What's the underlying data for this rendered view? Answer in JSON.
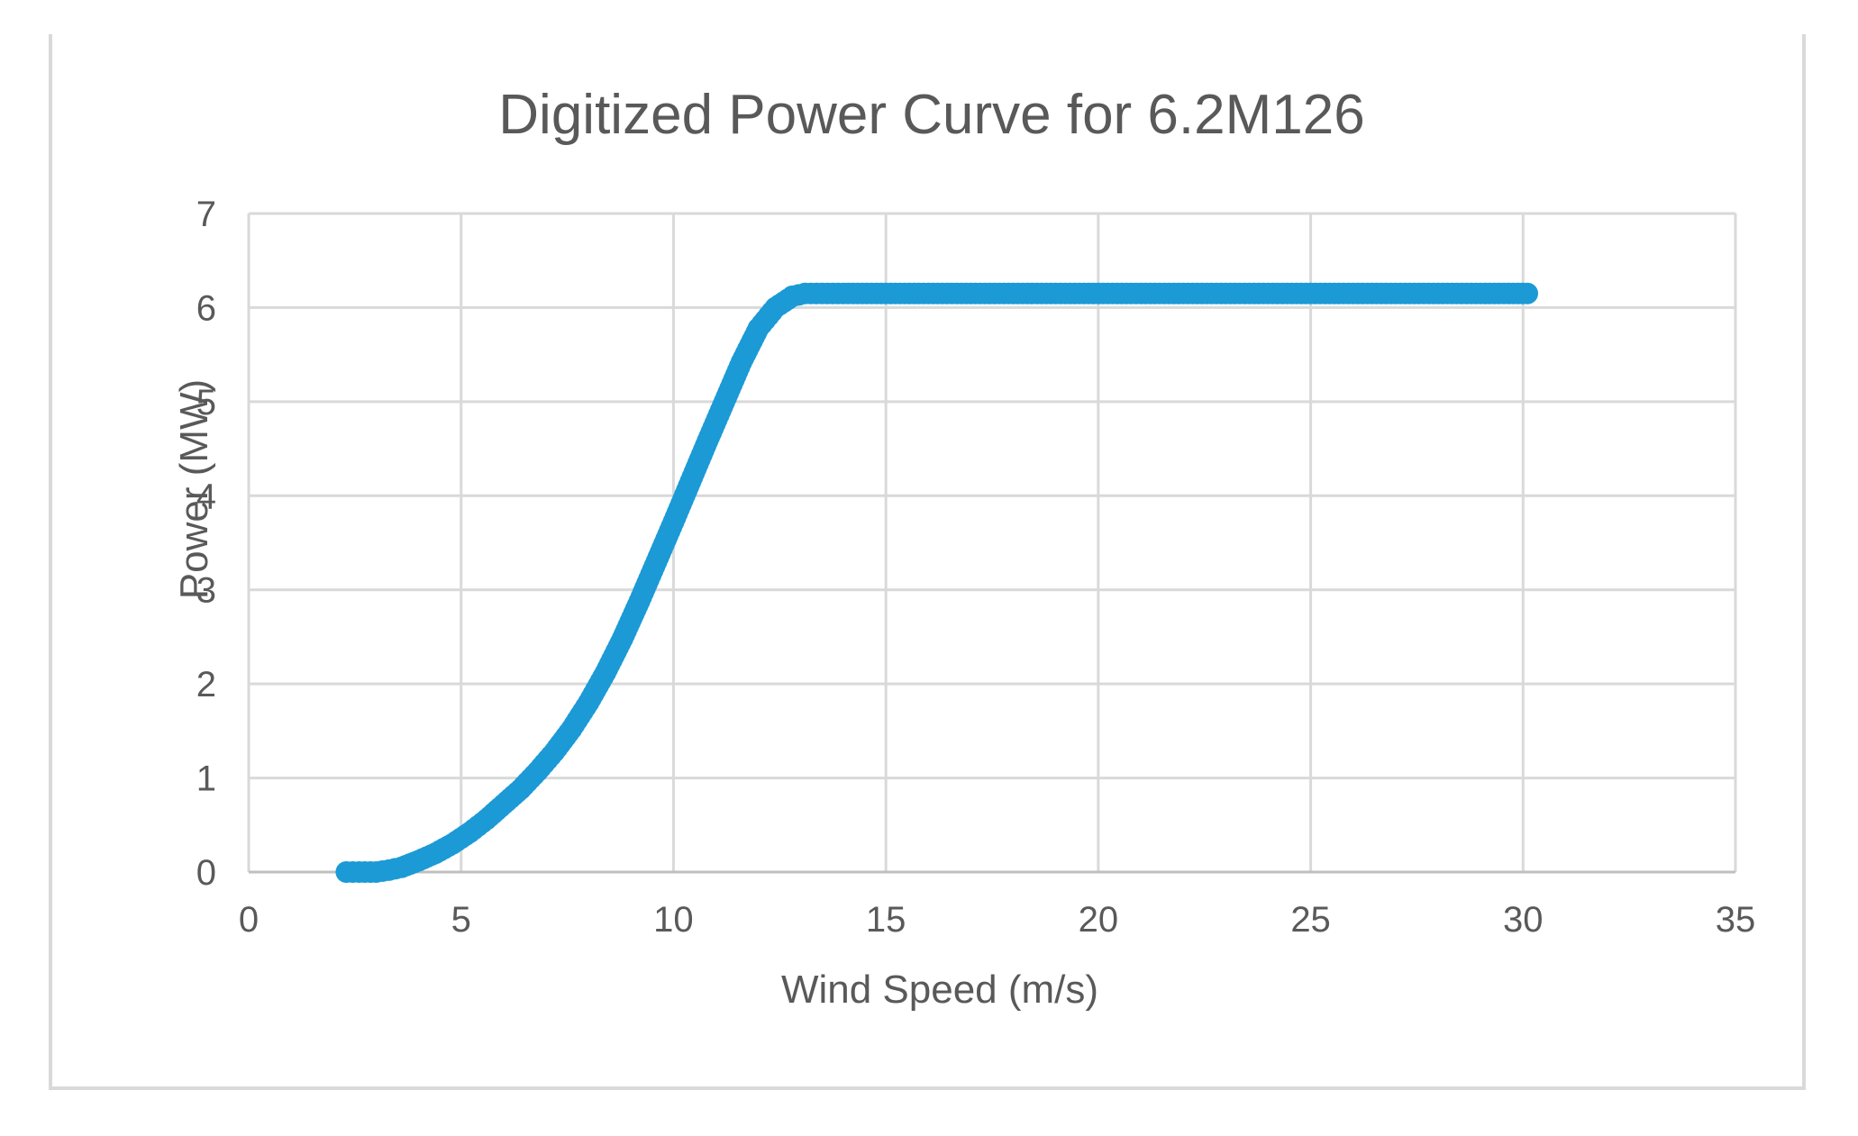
{
  "chart_data": {
    "type": "scatter",
    "title": "Digitized Power Curve for 6.2M126",
    "xlabel": "Wind Speed (m/s)",
    "ylabel": "Power (MW)",
    "xlim": [
      0,
      35
    ],
    "ylim": [
      0,
      7
    ],
    "xticks": [
      "0",
      "5",
      "10",
      "15",
      "20",
      "25",
      "30",
      "35"
    ],
    "yticks": [
      "0",
      "1",
      "2",
      "3",
      "4",
      "5",
      "6",
      "7"
    ],
    "grid": true,
    "legend": "none",
    "series": [
      {
        "color": "#1b9ad6",
        "x": [
          2.3,
          2.6,
          3.0,
          3.3,
          3.6,
          4.0,
          4.4,
          4.8,
          5.2,
          5.6,
          6.0,
          6.4,
          6.8,
          7.2,
          7.6,
          8.0,
          8.4,
          8.8,
          9.2,
          9.6,
          10.0,
          10.4,
          10.8,
          11.2,
          11.6,
          12.0,
          12.4,
          12.8,
          13.1,
          13.5,
          14.0,
          15.0,
          16.0,
          17.0,
          18.0,
          19.0,
          20.0,
          21.0,
          22.0,
          23.0,
          24.0,
          25.0,
          26.0,
          27.0,
          28.0,
          29.0,
          30.1
        ],
        "y": [
          0.0,
          0.0,
          0.0,
          0.02,
          0.05,
          0.12,
          0.2,
          0.3,
          0.42,
          0.56,
          0.72,
          0.88,
          1.07,
          1.28,
          1.52,
          1.8,
          2.12,
          2.48,
          2.88,
          3.3,
          3.72,
          4.15,
          4.58,
          5.0,
          5.42,
          5.78,
          6.0,
          6.12,
          6.15,
          6.15,
          6.15,
          6.15,
          6.15,
          6.15,
          6.15,
          6.15,
          6.15,
          6.15,
          6.15,
          6.15,
          6.15,
          6.15,
          6.15,
          6.15,
          6.15,
          6.15,
          6.15
        ]
      }
    ]
  }
}
